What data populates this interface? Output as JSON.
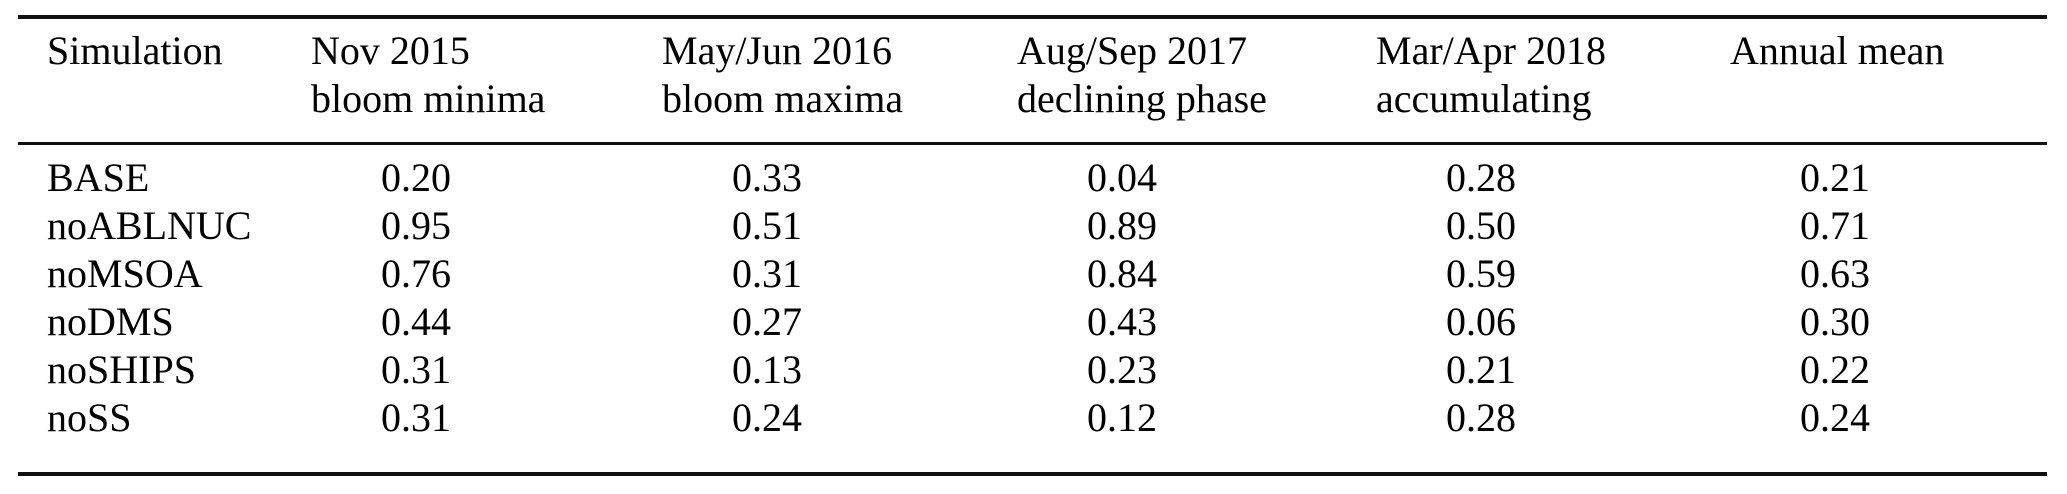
{
  "table": {
    "columns": [
      {
        "line1": "Simulation",
        "line2": ""
      },
      {
        "line1": "Nov 2015",
        "line2": "bloom minima"
      },
      {
        "line1": "May/Jun 2016",
        "line2": "bloom maxima"
      },
      {
        "line1": "Aug/Sep 2017",
        "line2": "declining phase"
      },
      {
        "line1": "Mar/Apr 2018",
        "line2": "accumulating"
      },
      {
        "line1": "Annual mean",
        "line2": ""
      }
    ],
    "rows": [
      {
        "simulation": "BASE",
        "values": [
          "0.20",
          "0.33",
          "0.04",
          "0.28",
          "0.21"
        ]
      },
      {
        "simulation": "noABLNUC",
        "values": [
          "0.95",
          "0.51",
          "0.89",
          "0.50",
          "0.71"
        ]
      },
      {
        "simulation": "noMSOA",
        "values": [
          "0.76",
          "0.31",
          "0.84",
          "0.59",
          "0.63"
        ]
      },
      {
        "simulation": "noDMS",
        "values": [
          "0.44",
          "0.27",
          "0.43",
          "0.06",
          "0.30"
        ]
      },
      {
        "simulation": "noSHIPS",
        "values": [
          "0.31",
          "0.13",
          "0.23",
          "0.21",
          "0.22"
        ]
      },
      {
        "simulation": "noSS",
        "values": [
          "0.31",
          "0.24",
          "0.12",
          "0.28",
          "0.24"
        ]
      }
    ],
    "colors": {
      "text": "#000000",
      "rule": "#111111",
      "background": "#ffffff"
    }
  }
}
